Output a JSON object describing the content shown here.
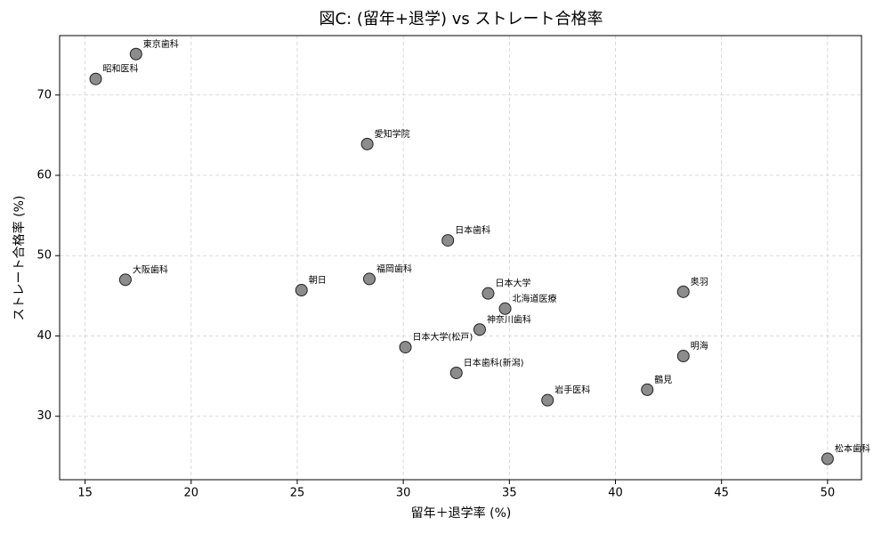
{
  "chart_data": {
    "type": "scatter",
    "title": "図C: (留年+退学) vs ストレート合格率",
    "x_label": "留年＋退学率 (%)",
    "y_label": "ストレート合格率 (%)",
    "labels": [
      "東京歯科",
      "昭和医科",
      "愛知学院",
      "日本歯科",
      "大阪歯科",
      "朝日",
      "福岡歯科",
      "日本大学",
      "北海道医療",
      "神奈川歯科",
      "日本大学(松戸)",
      "日本歯科(新潟)",
      "岩手医科",
      "鶴見",
      "明海",
      "奥羽",
      "松本歯科"
    ],
    "x": [
      17.4,
      15.5,
      28.3,
      32.1,
      16.9,
      25.2,
      28.4,
      34.0,
      34.8,
      33.6,
      30.1,
      32.5,
      36.8,
      41.5,
      43.2,
      43.2,
      50.0
    ],
    "y": [
      75.1,
      72.0,
      63.9,
      51.9,
      47.0,
      45.7,
      47.1,
      45.3,
      43.4,
      40.8,
      38.6,
      35.4,
      32.0,
      33.3,
      37.5,
      45.5,
      24.7
    ],
    "color": "#8c8c8c",
    "xlim": [
      13.8,
      51.6
    ],
    "ylim": [
      22.1,
      77.4
    ],
    "xticks": [
      15,
      20,
      25,
      30,
      35,
      40,
      45,
      50
    ],
    "yticks": [
      30,
      40,
      50,
      60,
      70
    ],
    "grid": true
  }
}
